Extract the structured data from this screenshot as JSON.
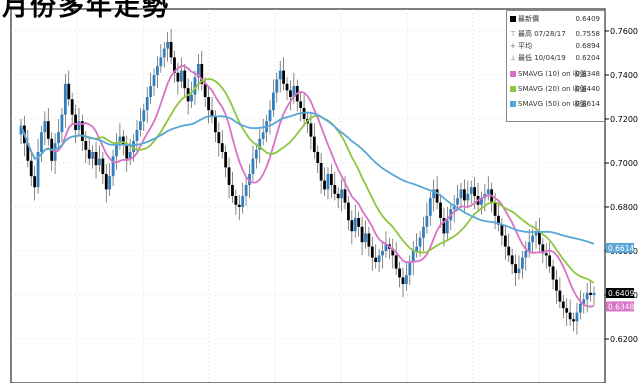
{
  "title": "月份多年走勢",
  "legend": {
    "rows": [
      {
        "label": "最新價",
        "value": "0.6409",
        "color": "#000000",
        "icon": "square"
      },
      {
        "label": "最高 07/28/17",
        "value": "0.7558",
        "color": "#666666",
        "icon": "high-marker"
      },
      {
        "label": "平均",
        "value": "0.6894",
        "color": "#666666",
        "icon": "avg-marker"
      },
      {
        "label": "最低 10/04/19",
        "value": "0.6204",
        "color": "#666666",
        "icon": "low-marker"
      },
      {
        "label": "SMAVG (10)   on 收盤",
        "value": "0.6348",
        "color": "#d872c8",
        "icon": "square"
      },
      {
        "label": "SMAVG (20)   on 收盤",
        "value": "0.6440",
        "color": "#8dc63f",
        "icon": "square"
      },
      {
        "label": "SMAVG (50)   on 收盤",
        "value": "0.6614",
        "color": "#5aa6d6",
        "icon": "square"
      }
    ]
  },
  "chart_data": {
    "type": "candlestick",
    "y_axis": {
      "min": 0.6,
      "max": 0.77,
      "ticks": [
        "0.7600",
        "0.7400",
        "0.7200",
        "0.7000",
        "0.6800",
        "0.6600",
        "0.6400",
        "0.6200"
      ],
      "position": "right"
    },
    "grid": true,
    "close": [
      0.717,
      0.709,
      0.701,
      0.694,
      0.689,
      0.705,
      0.714,
      0.719,
      0.711,
      0.701,
      0.709,
      0.714,
      0.722,
      0.736,
      0.729,
      0.722,
      0.715,
      0.719,
      0.71,
      0.706,
      0.702,
      0.705,
      0.699,
      0.702,
      0.695,
      0.688,
      0.694,
      0.703,
      0.709,
      0.712,
      0.708,
      0.702,
      0.705,
      0.71,
      0.715,
      0.719,
      0.724,
      0.73,
      0.735,
      0.74,
      0.744,
      0.748,
      0.752,
      0.755,
      0.748,
      0.741,
      0.737,
      0.742,
      0.734,
      0.728,
      0.731,
      0.739,
      0.745,
      0.736,
      0.73,
      0.724,
      0.721,
      0.714,
      0.709,
      0.705,
      0.698,
      0.69,
      0.685,
      0.681,
      0.68,
      0.685,
      0.69,
      0.695,
      0.702,
      0.706,
      0.711,
      0.714,
      0.719,
      0.724,
      0.732,
      0.738,
      0.742,
      0.736,
      0.733,
      0.73,
      0.735,
      0.728,
      0.725,
      0.72,
      0.718,
      0.712,
      0.705,
      0.7,
      0.692,
      0.688,
      0.695,
      0.69,
      0.686,
      0.684,
      0.688,
      0.682,
      0.674,
      0.669,
      0.675,
      0.671,
      0.664,
      0.668,
      0.662,
      0.657,
      0.655,
      0.658,
      0.66,
      0.663,
      0.661,
      0.658,
      0.652,
      0.648,
      0.645,
      0.649,
      0.655,
      0.66,
      0.662,
      0.666,
      0.671,
      0.676,
      0.684,
      0.688,
      0.682,
      0.675,
      0.668,
      0.674,
      0.679,
      0.681,
      0.684,
      0.688,
      0.683,
      0.686,
      0.689,
      0.685,
      0.681,
      0.684,
      0.686,
      0.688,
      0.682,
      0.676,
      0.672,
      0.667,
      0.662,
      0.658,
      0.654,
      0.65,
      0.652,
      0.657,
      0.66,
      0.664,
      0.667,
      0.669,
      0.663,
      0.659,
      0.658,
      0.653,
      0.647,
      0.642,
      0.637,
      0.634,
      0.632,
      0.629,
      0.628,
      0.632,
      0.636,
      0.638,
      0.641,
      0.64,
      0.6409
    ],
    "series": [
      {
        "name": "SMAVG (10)",
        "period": 10,
        "color": "#d872c8"
      },
      {
        "name": "SMAVG (20)",
        "period": 20,
        "color": "#8dc63f"
      },
      {
        "name": "SMAVG (50)",
        "period": 50,
        "color": "#5aa6d6"
      }
    ],
    "right_labels": [
      {
        "value": "0.6614",
        "color": "#5aa6d6",
        "price": 0.6614
      },
      {
        "value": "0.6409",
        "color": "#000000",
        "price": 0.6409
      },
      {
        "value": "0.6348",
        "color": "#d872c8",
        "price": 0.6348
      }
    ],
    "candle_up_color": "#2f7fc1",
    "candle_down_color": "#000000"
  }
}
